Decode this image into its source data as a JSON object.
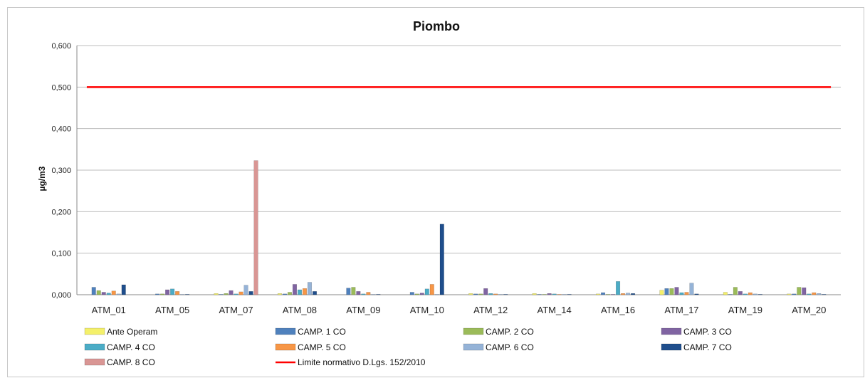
{
  "chart_data": {
    "type": "bar",
    "title": "Piombo",
    "ylabel": "µg/m3",
    "xlabel": "",
    "ylim": [
      0,
      0.6
    ],
    "yticks": [
      "0,000",
      "0,100",
      "0,200",
      "0,300",
      "0,400",
      "0,500",
      "0,600"
    ],
    "grid": true,
    "legend_position": "bottom",
    "categories": [
      "ATM_01",
      "ATM_05",
      "ATM_07",
      "ATM_08",
      "ATM_09",
      "ATM_10",
      "ATM_12",
      "ATM_14",
      "ATM_16",
      "ATM_17",
      "ATM_19",
      "ATM_20"
    ],
    "series": [
      {
        "name": "Ante Operam",
        "color": "#f4f06a",
        "values": [
          0.0,
          0.0,
          0.003,
          0.003,
          0.0,
          0.0,
          0.003,
          0.003,
          0.002,
          0.011,
          0.006,
          0.002
        ]
      },
      {
        "name": "CAMP. 1 CO",
        "color": "#4f81bd",
        "values": [
          0.018,
          0.002,
          0.001,
          0.002,
          0.016,
          0.006,
          0.002,
          0.001,
          0.005,
          0.015,
          0.001,
          0.002
        ]
      },
      {
        "name": "CAMP. 2 CO",
        "color": "#9bbb59",
        "values": [
          0.01,
          0.002,
          0.003,
          0.006,
          0.018,
          0.002,
          0.002,
          0.001,
          0.001,
          0.015,
          0.018,
          0.018
        ]
      },
      {
        "name": "CAMP. 3 CO",
        "color": "#8064a2",
        "values": [
          0.006,
          0.012,
          0.01,
          0.025,
          0.008,
          0.004,
          0.015,
          0.003,
          0.001,
          0.018,
          0.008,
          0.017
        ]
      },
      {
        "name": "CAMP. 4 CO",
        "color": "#4bacc6",
        "values": [
          0.004,
          0.014,
          0.002,
          0.012,
          0.002,
          0.014,
          0.003,
          0.002,
          0.032,
          0.005,
          0.002,
          0.002
        ]
      },
      {
        "name": "CAMP. 5 CO",
        "color": "#f79646",
        "values": [
          0.009,
          0.008,
          0.007,
          0.015,
          0.006,
          0.025,
          0.002,
          0.001,
          0.003,
          0.006,
          0.005,
          0.005
        ]
      },
      {
        "name": "CAMP. 6 CO",
        "color": "#95b3d7",
        "values": [
          0.002,
          0.001,
          0.023,
          0.03,
          0.001,
          0.001,
          0.001,
          0.001,
          0.004,
          0.028,
          0.002,
          0.003
        ]
      },
      {
        "name": "CAMP. 7 CO",
        "color": "#1f4e8c",
        "values": [
          0.024,
          0.001,
          0.008,
          0.008,
          0.001,
          0.17,
          0.001,
          0.001,
          0.003,
          0.002,
          0.001,
          0.001
        ]
      },
      {
        "name": "CAMP. 8 CO",
        "color": "#d99694",
        "values": [
          0.0,
          0.0,
          0.323,
          0.0,
          0.0,
          0.0,
          0.0,
          0.0,
          0.0,
          0.0,
          0.0,
          0.0
        ]
      }
    ],
    "reference_line": {
      "name": "Limite normativo D.Lgs. 152/2010",
      "value": 0.5,
      "color": "#ff0000"
    }
  }
}
